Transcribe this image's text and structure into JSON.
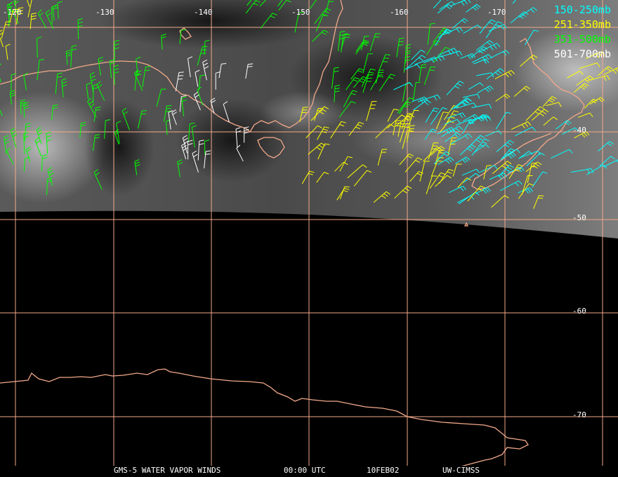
{
  "longitude_labels": [
    "-120",
    "-130",
    "-140",
    "-150",
    "-160",
    "-170"
  ],
  "latitude_labels": [
    "-40",
    "-50",
    "-60",
    "-70"
  ],
  "legend": [
    {
      "text": "150-250mb",
      "color": "#00ffff"
    },
    {
      "text": "251-350mb",
      "color": "#ffff00"
    },
    {
      "text": "351-500mb",
      "color": "#00ff00"
    },
    {
      "text": "501-700mb",
      "color": "#ffffff"
    }
  ],
  "caption": {
    "product": "GMS-5 WATER VAPOR WINDS",
    "time": "00:00 UTC",
    "date": "10FEB02",
    "source": "UW-CIMSS"
  },
  "colors": {
    "grid": "#f2a98a",
    "coastline": "#f2a98a",
    "background": "#000000"
  }
}
